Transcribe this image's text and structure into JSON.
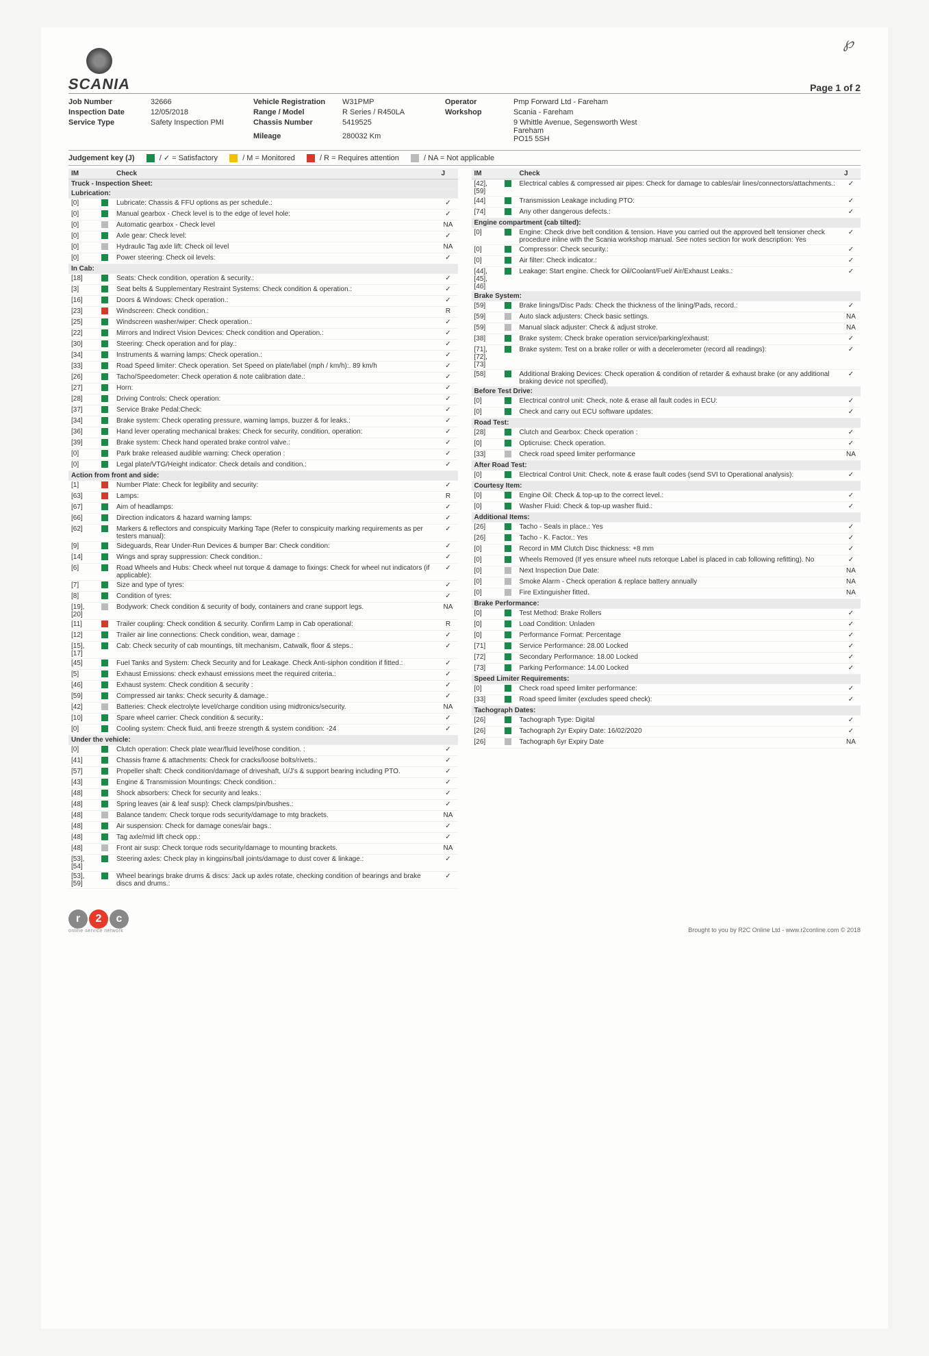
{
  "page_label": "Page 1 of 2",
  "logo_text": "SCANIA",
  "header": {
    "job_number_lab": "Job Number",
    "job_number": "32666",
    "vehicle_reg_lab": "Vehicle Registration",
    "vehicle_reg": "W31PMP",
    "operator_lab": "Operator",
    "operator": "Pmp Forward Ltd - Fareham",
    "insp_date_lab": "Inspection Date",
    "insp_date": "12/05/2018",
    "range_lab": "Range / Model",
    "range": "R Series / R450LA",
    "workshop_lab": "Workshop",
    "workshop": "Scania - Fareham",
    "service_lab": "Service Type",
    "service": "Safety Inspection PMI",
    "chassis_lab": "Chassis Number",
    "chassis": "5419525",
    "mileage_lab": "Mileage",
    "mileage": "280032 Km",
    "workshop_addr": "9 Whittle Avenue, Segensworth West\nFareham\nPO15 5SH"
  },
  "judgement": {
    "title": "Judgement key (J)",
    "sat": "/ ✓ = Satisfactory",
    "mon": "/ M = Monitored",
    "req": "/ R = Requires attention",
    "na": "/ NA = Not applicable"
  },
  "th": {
    "im": "IM",
    "check": "Check",
    "j": "J"
  },
  "colors": {
    "green": "#1a8a4a",
    "yellow": "#f2c200",
    "red": "#d43a2a",
    "grey": "#bbbbbb"
  },
  "left": [
    {
      "section": "Truck - Inspection Sheet:"
    },
    {
      "section": "Lubrication:"
    },
    {
      "im": "[0]",
      "c": "green",
      "t": "Lubricate: Chassis & FFU options as per schedule.:",
      "j": "✓"
    },
    {
      "im": "[0]",
      "c": "green",
      "t": "Manual gearbox - Check level is to the edge of level hole:",
      "j": "✓"
    },
    {
      "im": "[0]",
      "c": "grey",
      "t": "Automatic gearbox - Check level",
      "j": "NA"
    },
    {
      "im": "[0]",
      "c": "green",
      "t": "Axle gear: Check level:",
      "j": "✓"
    },
    {
      "im": "[0]",
      "c": "grey",
      "t": "Hydraulic Tag axle lift: Check oil level",
      "j": "NA"
    },
    {
      "im": "[0]",
      "c": "green",
      "t": "Power steering: Check oil levels:",
      "j": "✓"
    },
    {
      "section": "In Cab:"
    },
    {
      "im": "[18]",
      "c": "green",
      "t": "Seats: Check condition, operation & security.:",
      "j": "✓"
    },
    {
      "im": "[3]",
      "c": "green",
      "t": "Seat belts & Supplementary Restraint Systems: Check condition & operation.:",
      "j": "✓"
    },
    {
      "im": "[16]",
      "c": "green",
      "t": "Doors & Windows: Check operation.:",
      "j": "✓"
    },
    {
      "im": "[23]",
      "c": "red",
      "t": "Windscreen: Check condition.:",
      "j": "R"
    },
    {
      "im": "[25]",
      "c": "green",
      "t": "Windscreen washer/wiper: Check operation.:",
      "j": "✓"
    },
    {
      "im": "[22]",
      "c": "green",
      "t": "Mirrors and Indirect Vision Devices: Check condition and Operation.:",
      "j": "✓"
    },
    {
      "im": "[30]",
      "c": "green",
      "t": "Steering: Check operation and for play.:",
      "j": "✓"
    },
    {
      "im": "[34]",
      "c": "green",
      "t": "Instruments & warning lamps: Check operation.:",
      "j": "✓"
    },
    {
      "im": "[33]",
      "c": "green",
      "t": "Road Speed limiter: Check operation. Set Speed on plate/label (mph / km/h):. 89 km/h",
      "j": "✓"
    },
    {
      "im": "[26]",
      "c": "green",
      "t": "Tacho/Speedometer: Check operation & note calibration date.:",
      "j": "✓"
    },
    {
      "im": "[27]",
      "c": "green",
      "t": "Horn:",
      "j": "✓"
    },
    {
      "im": "[28]",
      "c": "green",
      "t": "Driving Controls: Check operation:",
      "j": "✓"
    },
    {
      "im": "[37]",
      "c": "green",
      "t": "Service Brake Pedal:Check:",
      "j": "✓"
    },
    {
      "im": "[34]",
      "c": "green",
      "t": "Brake system: Check operating pressure, warning lamps, buzzer & for leaks.:",
      "j": "✓"
    },
    {
      "im": "[36]",
      "c": "green",
      "t": "Hand lever operating mechanical brakes: Check for security, condition, operation:",
      "j": "✓"
    },
    {
      "im": "[39]",
      "c": "green",
      "t": "Brake system: Check hand operated brake control valve.:",
      "j": "✓"
    },
    {
      "im": "[0]",
      "c": "green",
      "t": "Park brake released audible warning: Check operation :",
      "j": "✓"
    },
    {
      "im": "[0]",
      "c": "green",
      "t": "Legal plate/VTG/Height indicator: Check details and condition.:",
      "j": "✓"
    },
    {
      "section": "Action from front and side:"
    },
    {
      "im": "[1]",
      "c": "red",
      "t": "Number Plate: Check for legibility and security:",
      "j": "✓"
    },
    {
      "im": "[63]",
      "c": "red",
      "t": "Lamps:",
      "j": "R"
    },
    {
      "im": "[67]",
      "c": "green",
      "t": "Aim of headlamps:",
      "j": "✓"
    },
    {
      "im": "[66]",
      "c": "green",
      "t": "Direction indicators & hazard warning lamps:",
      "j": "✓"
    },
    {
      "im": "[62]",
      "c": "green",
      "t": "Markers & reflectors and conspicuity Marking Tape (Refer to conspicuity marking requirements as per testers manual):",
      "j": "✓"
    },
    {
      "im": "[9]",
      "c": "green",
      "t": "Sideguards, Rear Under-Run Devices & bumper Bar: Check condition:",
      "j": "✓"
    },
    {
      "im": "[14]",
      "c": "green",
      "t": "Wings and spray suppression: Check condition.:",
      "j": "✓"
    },
    {
      "im": "[6]",
      "c": "green",
      "t": "Road Wheels and Hubs: Check wheel nut torque & damage to fixings: Check for wheel nut indicators (if applicable):",
      "j": "✓"
    },
    {
      "im": "[7]",
      "c": "green",
      "t": "Size and type of tyres:",
      "j": "✓"
    },
    {
      "im": "[8]",
      "c": "green",
      "t": "Condition of tyres:",
      "j": "✓"
    },
    {
      "im": "[19], [20]",
      "c": "grey",
      "t": "Bodywork: Check condition & security of body, containers and crane support legs.",
      "j": "NA"
    },
    {
      "im": "[11]",
      "c": "red",
      "t": "Trailer coupling: Check condition & security. Confirm Lamp in Cab operational:",
      "j": "R"
    },
    {
      "im": "[12]",
      "c": "green",
      "t": "Trailer air line connections: Check condition, wear, damage :",
      "j": "✓"
    },
    {
      "im": "[15], [17]",
      "c": "green",
      "t": "Cab: Check security of cab mountings, tilt mechanism, Catwalk, floor & steps.:",
      "j": "✓"
    },
    {
      "im": "[45]",
      "c": "green",
      "t": "Fuel Tanks and System: Check Security and for Leakage. Check Anti-siphon condition if fitted.:",
      "j": "✓"
    },
    {
      "im": "[5]",
      "c": "green",
      "t": "Exhaust Emissions: check exhaust emissions meet the required criteria.:",
      "j": "✓"
    },
    {
      "im": "[46]",
      "c": "green",
      "t": "Exhaust system: Check condition & security :",
      "j": "✓"
    },
    {
      "im": "[59]",
      "c": "green",
      "t": "Compressed air tanks: Check security & damage.:",
      "j": "✓"
    },
    {
      "im": "[42]",
      "c": "grey",
      "t": "Batteries: Check electrolyte level/charge condition using midtronics/security.",
      "j": "NA"
    },
    {
      "im": "[10]",
      "c": "green",
      "t": "Spare wheel carrier: Check condition & security.:",
      "j": "✓"
    },
    {
      "im": "[0]",
      "c": "green",
      "t": "Cooling system: Check fluid, anti freeze strength & system condition: -24",
      "j": "✓"
    },
    {
      "section": "Under the vehicle:"
    },
    {
      "im": "[0]",
      "c": "green",
      "t": "Clutch operation: Check plate wear/fluid level/hose condition. :",
      "j": "✓"
    },
    {
      "im": "[41]",
      "c": "green",
      "t": "Chassis frame & attachments: Check for cracks/loose bolts/rivets.:",
      "j": "✓"
    },
    {
      "im": "[57]",
      "c": "green",
      "t": "Propeller shaft: Check condition/damage of driveshaft, U/J's & support bearing including PTO.",
      "j": "✓"
    },
    {
      "im": "[43]",
      "c": "green",
      "t": "Engine & Transmission Mountings: Check condition.:",
      "j": "✓"
    },
    {
      "im": "[48]",
      "c": "green",
      "t": "Shock absorbers: Check for security and leaks.:",
      "j": "✓"
    },
    {
      "im": "[48]",
      "c": "green",
      "t": "Spring leaves (air & leaf susp): Check clamps/pin/bushes.:",
      "j": "✓"
    },
    {
      "im": "[48]",
      "c": "grey",
      "t": "Balance tandem: Check torque rods security/damage to mtg brackets.",
      "j": "NA"
    },
    {
      "im": "[48]",
      "c": "green",
      "t": "Air suspension: Check for damage cones/air bags.:",
      "j": "✓"
    },
    {
      "im": "[48]",
      "c": "green",
      "t": "Tag axle/mid lift check opp.:",
      "j": "✓"
    },
    {
      "im": "[48]",
      "c": "grey",
      "t": "Front air susp: Check torque rods security/damage to mounting brackets.",
      "j": "NA"
    },
    {
      "im": "[53], [54]",
      "c": "green",
      "t": "Steering axles: Check play in kingpins/ball joints/damage to dust cover & linkage.:",
      "j": "✓"
    },
    {
      "im": "[53], [59]",
      "c": "green",
      "t": "Wheel bearings brake drums & discs: Jack up axles rotate, checking condition of bearings and brake discs and drums.:",
      "j": "✓"
    }
  ],
  "right": [
    {
      "im": "[42], [59]",
      "c": "green",
      "t": "Electrical cables & compressed air pipes: Check for damage to cables/air lines/connectors/attachments.:",
      "j": "✓"
    },
    {
      "im": "[44]",
      "c": "green",
      "t": "Transmission Leakage including PTO:",
      "j": "✓"
    },
    {
      "im": "[74]",
      "c": "green",
      "t": "Any other dangerous defects.:",
      "j": "✓"
    },
    {
      "section": "Engine compartment (cab tilted):"
    },
    {
      "im": "[0]",
      "c": "green",
      "t": "Engine: Check drive belt condition & tension. Have you carried out the approved belt tensioner check procedure inline with the Scania workshop manual. See notes section for work description: Yes",
      "j": "✓"
    },
    {
      "im": "[0]",
      "c": "green",
      "t": "Compressor: Check security.:",
      "j": "✓"
    },
    {
      "im": "[0]",
      "c": "green",
      "t": "Air filter: Check indicator.:",
      "j": "✓"
    },
    {
      "im": "[44], [45], [46]",
      "c": "green",
      "t": "Leakage: Start engine. Check for Oil/Coolant/Fuel/ Air/Exhaust Leaks.:",
      "j": "✓"
    },
    {
      "section": "Brake System:"
    },
    {
      "im": "[59]",
      "c": "green",
      "t": "Brake linings/Disc Pads: Check the thickness of the lining/Pads, record.:",
      "j": "✓"
    },
    {
      "im": "[59]",
      "c": "grey",
      "t": "Auto slack adjusters: Check basic settings.",
      "j": "NA"
    },
    {
      "im": "[59]",
      "c": "grey",
      "t": "Manual slack adjuster: Check & adjust stroke.",
      "j": "NA"
    },
    {
      "im": "[38]",
      "c": "green",
      "t": "Brake system: Check brake operation service/parking/exhaust:",
      "j": "✓"
    },
    {
      "im": "[71], [72], [73]",
      "c": "green",
      "t": "Brake system: Test on a brake roller or with a decelerometer (record all readings):",
      "j": "✓"
    },
    {
      "im": "[58]",
      "c": "green",
      "t": "Additional Braking Devices: Check operation & condition of retarder & exhaust brake (or any additional braking device not specified).",
      "j": "✓"
    },
    {
      "section": "Before Test Drive:"
    },
    {
      "im": "[0]",
      "c": "green",
      "t": "Electrical control unit: Check, note & erase all fault codes in ECU:",
      "j": "✓"
    },
    {
      "im": "[0]",
      "c": "green",
      "t": "Check and carry out ECU software updates:",
      "j": "✓"
    },
    {
      "section": "Road Test:"
    },
    {
      "im": "[28]",
      "c": "green",
      "t": "Clutch and Gearbox: Check operation :",
      "j": "✓"
    },
    {
      "im": "[0]",
      "c": "green",
      "t": "Opticruise: Check operation.",
      "j": "✓"
    },
    {
      "im": "[33]",
      "c": "grey",
      "t": "Check road speed limiter performance",
      "j": "NA"
    },
    {
      "section": "After Road Test:"
    },
    {
      "im": "[0]",
      "c": "green",
      "t": "Electrical Control Unit: Check, note & erase fault codes (send SVI to Operational analysis):",
      "j": "✓"
    },
    {
      "section": "Courtesy Item:"
    },
    {
      "im": "[0]",
      "c": "green",
      "t": "Engine Oil: Check & top-up to the correct level.:",
      "j": "✓"
    },
    {
      "im": "[0]",
      "c": "green",
      "t": "Washer Fluid: Check & top-up washer fluid.:",
      "j": "✓"
    },
    {
      "section": "Additional Items:"
    },
    {
      "im": "[26]",
      "c": "green",
      "t": "Tacho - Seals in place.: Yes",
      "j": "✓"
    },
    {
      "im": "[26]",
      "c": "green",
      "t": "Tacho - K. Factor.: Yes",
      "j": "✓"
    },
    {
      "im": "[0]",
      "c": "green",
      "t": "Record in MM Clutch Disc thickness: +8 mm",
      "j": "✓"
    },
    {
      "im": "[0]",
      "c": "green",
      "t": "Wheels Removed (If yes ensure wheel nuts retorque Label is placed in cab following refitting). No",
      "j": "✓"
    },
    {
      "im": "[0]",
      "c": "grey",
      "t": "Next Inspection Due Date:",
      "j": "NA"
    },
    {
      "im": "[0]",
      "c": "grey",
      "t": "Smoke Alarm - Check operation & replace battery annually",
      "j": "NA"
    },
    {
      "im": "[0]",
      "c": "grey",
      "t": "Fire Extinguisher fitted.",
      "j": "NA"
    },
    {
      "section": "Brake Performance:"
    },
    {
      "im": "[0]",
      "c": "green",
      "t": "Test Method: Brake Rollers",
      "j": "✓"
    },
    {
      "im": "[0]",
      "c": "green",
      "t": "Load Condition: Unladen",
      "j": "✓"
    },
    {
      "im": "[0]",
      "c": "green",
      "t": "Performance Format: Percentage",
      "j": "✓"
    },
    {
      "im": "[71]",
      "c": "green",
      "t": "Service Performance: 28.00 Locked",
      "j": "✓"
    },
    {
      "im": "[72]",
      "c": "green",
      "t": "Secondary Performance: 18.00 Locked",
      "j": "✓"
    },
    {
      "im": "[73]",
      "c": "green",
      "t": "Parking Performance: 14.00 Locked",
      "j": "✓"
    },
    {
      "section": "Speed Limiter Requirements:"
    },
    {
      "im": "[0]",
      "c": "green",
      "t": "Check road speed limiter performance:",
      "j": "✓"
    },
    {
      "im": "[33]",
      "c": "green",
      "t": "Road speed limiter (excludes speed check):",
      "j": "✓"
    },
    {
      "section": "Tachograph Dates:"
    },
    {
      "im": "[26]",
      "c": "green",
      "t": "Tachograph Type: Digital",
      "j": "✓"
    },
    {
      "im": "[26]",
      "c": "green",
      "t": "Tachograph 2yr Expiry Date: 16/02/2020",
      "j": "✓"
    },
    {
      "im": "[26]",
      "c": "grey",
      "t": "Tachograph 6yr Expiry Date",
      "j": "NA"
    }
  ],
  "footer": {
    "sub": "online service network",
    "right": "Brought to you by R2C Online Ltd - www.r2conline.com © 2018"
  }
}
